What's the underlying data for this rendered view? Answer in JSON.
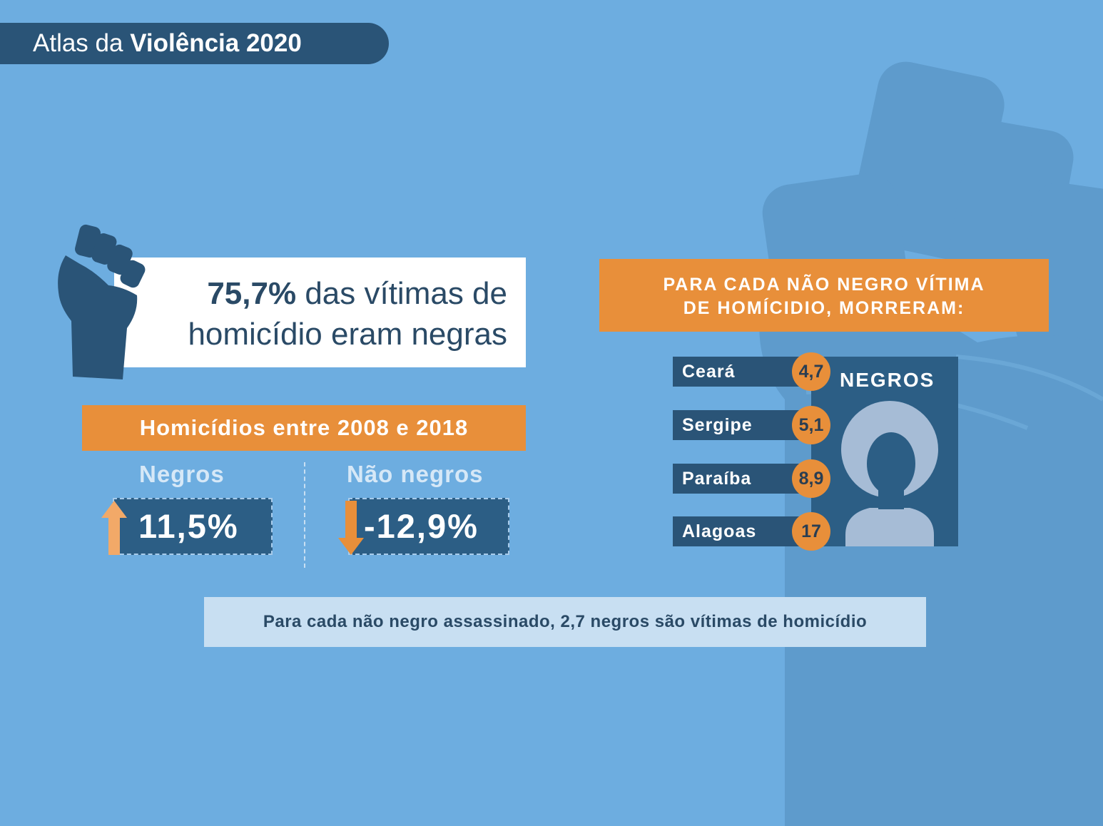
{
  "header": {
    "title_regular": "Atlas da ",
    "title_bold": "Violência 2020"
  },
  "stat": {
    "highlight": "75,7%",
    "line1_rest": " das vítimas de",
    "line2": "homicídio eram negras"
  },
  "homicidios": {
    "label": "Homicídios entre 2008 e 2018",
    "negros_label": "Negros",
    "negros_value": "11,5%",
    "nao_negros_label": "Não negros",
    "nao_negros_value": "-12,9%"
  },
  "comparison": {
    "header_line1": "PARA CADA NÃO NEGRO VÍTIMA",
    "header_line2": "DE HOMÍCIDIO, MORRERAM:",
    "panel_label": "NEGROS",
    "states": [
      {
        "name": "Ceará",
        "value": "4,7"
      },
      {
        "name": "Sergipe",
        "value": "5,1"
      },
      {
        "name": "Paraíba",
        "value": "8,9"
      },
      {
        "name": "Alagoas",
        "value": "17"
      }
    ]
  },
  "footer": {
    "text": "Para cada não negro assassinado, 2,7 negros são vítimas de homicídio"
  },
  "colors": {
    "background": "#6dade0",
    "dark_blue": "#2a5477",
    "orange": "#e88f3a",
    "light_blue": "#c8dff2"
  },
  "icons": {
    "background_fist": "raised-fist-icon",
    "small_fist": "raised-fist-icon",
    "up_arrow": "arrow-up-icon",
    "down_arrow": "arrow-down-icon",
    "person": "person-silhouette-icon"
  }
}
